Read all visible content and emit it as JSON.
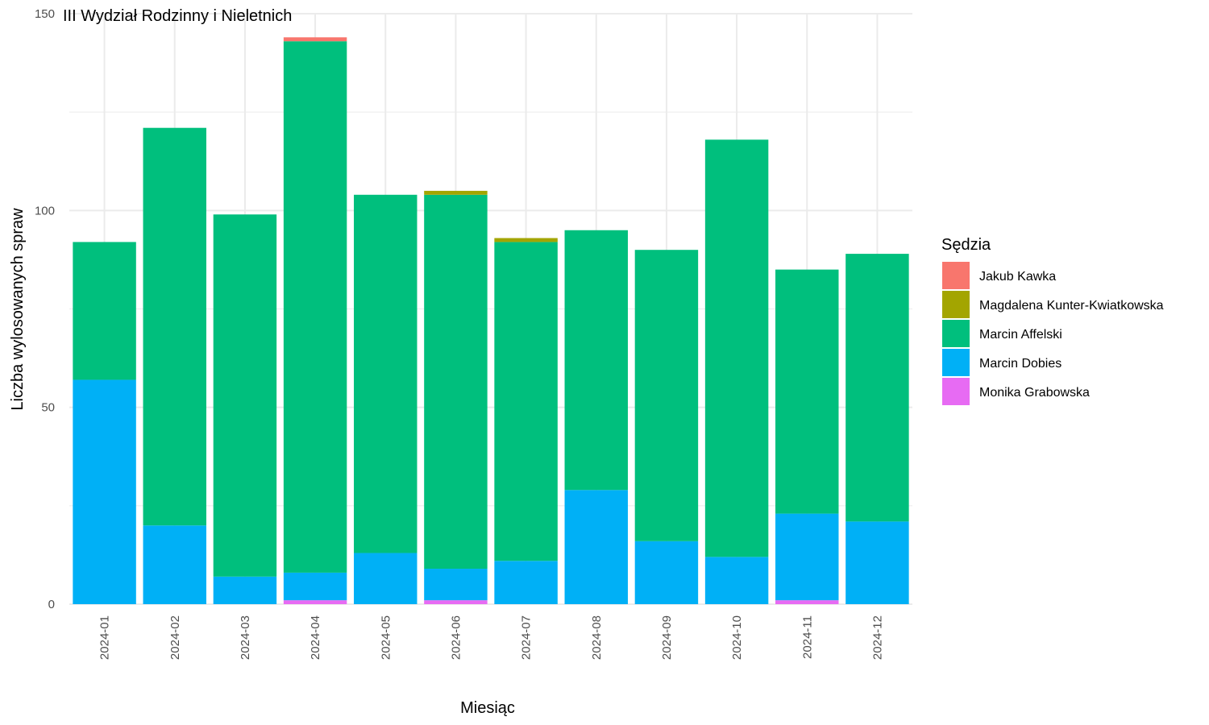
{
  "chart_data": {
    "type": "bar",
    "stacked": true,
    "title": "III Wydział Rodzinny i Nieletnich",
    "xlabel": "Miesiąc",
    "ylabel": "Liczba wylosowanych spraw",
    "ylim": [
      0,
      150
    ],
    "yticks": [
      0,
      50,
      100,
      150
    ],
    "grid": true,
    "legend_title": "Sędzia",
    "legend_position": "right",
    "categories": [
      "2024-01",
      "2024-02",
      "2024-03",
      "2024-04",
      "2024-05",
      "2024-06",
      "2024-07",
      "2024-08",
      "2024-09",
      "2024-10",
      "2024-11",
      "2024-12"
    ],
    "series": [
      {
        "name": "Monika Grabowska",
        "color": "#E76BF3",
        "values": [
          0,
          0,
          0,
          1,
          0,
          1,
          0,
          0,
          0,
          0,
          1,
          0
        ]
      },
      {
        "name": "Marcin Dobies",
        "color": "#00B0F6",
        "values": [
          57,
          20,
          7,
          7,
          13,
          8,
          11,
          29,
          16,
          12,
          22,
          21
        ]
      },
      {
        "name": "Marcin Affelski",
        "color": "#00BF7D",
        "values": [
          35,
          101,
          92,
          135,
          91,
          95,
          81,
          66,
          74,
          106,
          62,
          68
        ]
      },
      {
        "name": "Magdalena Kunter-Kwiatkowska",
        "color": "#A3A500",
        "values": [
          0,
          0,
          0,
          0,
          0,
          1,
          1,
          0,
          0,
          0,
          0,
          0
        ]
      },
      {
        "name": "Jakub Kawka",
        "color": "#F8766D",
        "values": [
          0,
          0,
          0,
          1,
          0,
          0,
          0,
          0,
          0,
          0,
          0,
          0
        ]
      }
    ],
    "legend_order": [
      "Jakub Kawka",
      "Magdalena Kunter-Kwiatkowska",
      "Marcin Affelski",
      "Marcin Dobies",
      "Monika Grabowska"
    ]
  }
}
